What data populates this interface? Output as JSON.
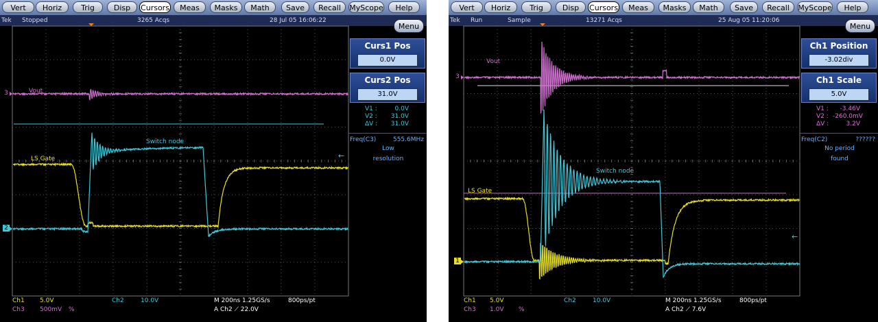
{
  "screens": [
    {
      "menu": [
        "Vert",
        "Horiz",
        "Trig",
        "Disp",
        "Cursors",
        "Meas",
        "Masks",
        "Math",
        "Save",
        "Recall",
        "MyScope",
        "Help"
      ],
      "status": {
        "brand": "Tek",
        "state": "Stopped",
        "acqs": "3265 Acqs",
        "timestamp": "28 Jul 05 16:06:22"
      },
      "menu_button": "Menu",
      "controls": [
        {
          "label": "Curs1 Pos",
          "value": "0.0V"
        },
        {
          "label": "Curs2 Pos",
          "value": "31.0V"
        }
      ],
      "readouts": [
        {
          "label": "V1 :",
          "value": "0.0V"
        },
        {
          "label": "V2 :",
          "value": "31.0V"
        },
        {
          "label": "ΔV :",
          "value": "31.0V"
        }
      ],
      "measurement": {
        "label": "Freq(C3)",
        "value": "555.6MHz",
        "note": [
          "Low",
          "resolution"
        ]
      },
      "traces": {
        "vout": "Vout",
        "switch": "Switch node",
        "gate": "LS Gate"
      },
      "markers": [
        "3",
        "2"
      ],
      "footer": {
        "ch1": [
          "Ch1",
          "5.0V"
        ],
        "ch2": [
          "Ch2",
          "10.0V"
        ],
        "ch3": [
          "Ch3",
          "500mV",
          "%"
        ],
        "timebase": "M 200ns 1.25GS/s",
        "record": "800ps/pt",
        "trigger": "A  Ch2  ⟋  22.0V"
      }
    },
    {
      "menu": [
        "Vert",
        "Horiz",
        "Trig",
        "Disp",
        "Cursors",
        "Meas",
        "Masks",
        "Math",
        "Save",
        "Recall",
        "MyScope",
        "Help"
      ],
      "status": {
        "brand": "Tek",
        "state": "Run",
        "mode": "Sample",
        "acqs": "13271 Acqs",
        "timestamp": "25 Aug 05 11:20:06"
      },
      "menu_button": "Menu",
      "controls": [
        {
          "label": "Ch1 Position",
          "value": "-3.02div"
        },
        {
          "label": "Ch1 Scale",
          "value": "5.0V"
        }
      ],
      "readouts": [
        {
          "label": "V1 :",
          "value": "-3.46V"
        },
        {
          "label": "V2 :",
          "value": "-260.0mV"
        },
        {
          "label": "ΔV :",
          "value": "3.2V"
        }
      ],
      "measurement": {
        "label": "Freq(C2)",
        "value": "??????",
        "note": [
          "No period",
          "found"
        ]
      },
      "traces": {
        "vout": "Vout",
        "switch": "Switch node",
        "gate": "LS Gate"
      },
      "markers": [
        "3",
        "1"
      ],
      "footer": {
        "ch1": [
          "Ch1",
          "5.0V"
        ],
        "ch2": [
          "Ch2",
          "10.0V"
        ],
        "ch3": [
          "Ch3",
          "1.0V",
          "%"
        ],
        "timebase": "M 200ns 1.25GS/s",
        "record": "800ps/pt",
        "trigger": "A  Ch2  ⟋  7.6V"
      }
    }
  ]
}
